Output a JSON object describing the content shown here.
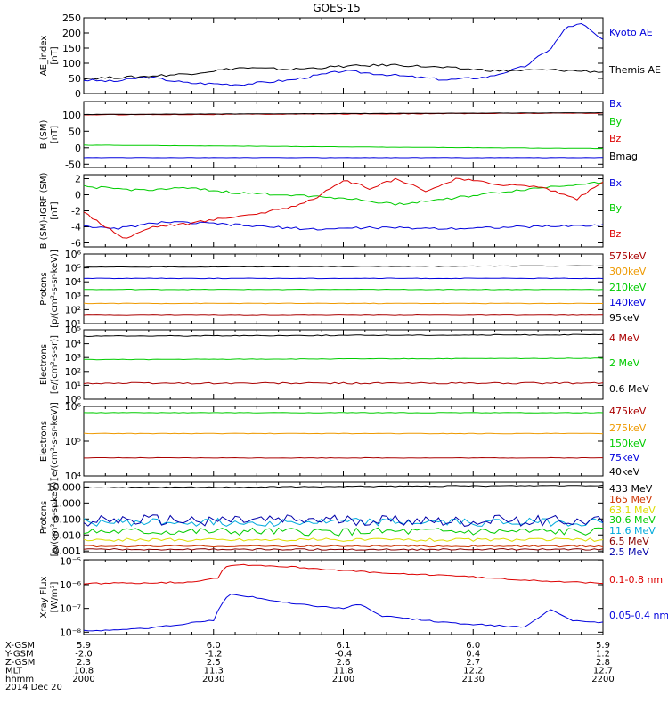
{
  "title": "GOES-15",
  "time_axis": {
    "start": "2000",
    "end": "2200",
    "ticks": [
      "2000",
      "2030",
      "2100",
      "2130",
      "2200"
    ]
  },
  "footer": {
    "rows": [
      {
        "label": "X-GSM",
        "values": [
          "5.9",
          "6.0",
          "6.1",
          "6.0",
          "5.9"
        ]
      },
      {
        "label": "Y-GSM",
        "values": [
          "-2.0",
          "-1.2",
          "-0.4",
          "0.4",
          "1.2"
        ]
      },
      {
        "label": "Z-GSM",
        "values": [
          "2.3",
          "2.5",
          "2.6",
          "2.7",
          "2.8"
        ]
      },
      {
        "label": "MLT",
        "values": [
          "10.8",
          "11.3",
          "11.8",
          "12.2",
          "12.7"
        ]
      },
      {
        "label": "hhmm",
        "values": [
          "2000",
          "2030",
          "2100",
          "2130",
          "2200"
        ]
      }
    ],
    "date": "2014 Dec 20"
  },
  "chart_data": [
    {
      "type": "line",
      "ylabel": [
        "AE_index",
        "[nT]"
      ],
      "yscale": "linear",
      "ylim": [
        0,
        250
      ],
      "yticks": [
        {
          "v": 0,
          "t": "0"
        },
        {
          "v": 50,
          "t": "50"
        },
        {
          "v": 100,
          "t": "100"
        },
        {
          "v": 150,
          "t": "150"
        },
        {
          "v": 200,
          "t": "200"
        },
        {
          "v": 250,
          "t": "250"
        }
      ],
      "series": [
        {
          "name": "Kyoto AE",
          "color": "#0000dd",
          "pattern": "kyoto"
        },
        {
          "name": "Themis AE",
          "color": "#000000",
          "pattern": "themis"
        }
      ]
    },
    {
      "type": "line",
      "ylabel": [
        "B (SM)",
        "[nT]"
      ],
      "yscale": "linear",
      "ylim": [
        -60,
        140
      ],
      "yticks": [
        {
          "v": -50,
          "t": "-50"
        },
        {
          "v": 0,
          "t": "0"
        },
        {
          "v": 50,
          "t": "50"
        },
        {
          "v": 100,
          "t": "100"
        }
      ],
      "series": [
        {
          "name": "Bx",
          "color": "#0000dd",
          "base": -30,
          "amp": 0.5
        },
        {
          "name": "By",
          "color": "#00cc00",
          "base": 8,
          "end": -2,
          "amp": 0.5
        },
        {
          "name": "Bz",
          "color": "#dd0000",
          "base": 100,
          "end": 105,
          "amp": 1
        },
        {
          "name": "Bmag",
          "color": "#000000",
          "base": 101,
          "end": 106,
          "amp": 0.5
        }
      ]
    },
    {
      "type": "line",
      "ylabel": [
        "B (SM)-IGRF (SM)",
        "[nT]"
      ],
      "yscale": "linear",
      "ylim": [
        -6.5,
        2.5
      ],
      "yticks": [
        {
          "v": -6,
          "t": "-6"
        },
        {
          "v": -4,
          "t": "-4"
        },
        {
          "v": -2,
          "t": "-2"
        },
        {
          "v": 0,
          "t": "0"
        },
        {
          "v": 2,
          "t": "2"
        }
      ],
      "series": [
        {
          "name": "Bx",
          "color": "#0000dd",
          "pattern": "dbx"
        },
        {
          "name": "By",
          "color": "#00cc00",
          "pattern": "dby"
        },
        {
          "name": "Bz",
          "color": "#dd0000",
          "pattern": "dbz"
        }
      ]
    },
    {
      "type": "line",
      "ylabel": [
        "Protons",
        "[p/(cm²-s-sr-keV)]"
      ],
      "yscale": "log",
      "ylim": [
        1,
        6
      ],
      "yticks": [
        {
          "v": 1,
          "t": "10¹"
        },
        {
          "v": 2,
          "t": "10²"
        },
        {
          "v": 3,
          "t": "10³"
        },
        {
          "v": 4,
          "t": "10⁴"
        },
        {
          "v": 5,
          "t": "10⁵"
        },
        {
          "v": 6,
          "t": "10⁶"
        }
      ],
      "series": [
        {
          "name": "575keV",
          "color": "#aa0000",
          "base": 1.65,
          "amp": 0.02
        },
        {
          "name": "300keV",
          "color": "#ee9900",
          "base": 2.45,
          "amp": 0.02
        },
        {
          "name": "210keV",
          "color": "#00cc00",
          "base": 3.45,
          "amp": 0.02
        },
        {
          "name": "140keV",
          "color": "#0000dd",
          "base": 4.25,
          "amp": 0.02
        },
        {
          "name": "95keV",
          "color": "#000000",
          "base": 5.05,
          "end": 5.15,
          "amp": 0.02
        }
      ]
    },
    {
      "type": "line",
      "ylabel": [
        "Electrons",
        "[e/(cm²-s-sr)]"
      ],
      "yscale": "log",
      "ylim": [
        0,
        5
      ],
      "yticks": [
        {
          "v": 0,
          "t": "10⁰"
        },
        {
          "v": 1,
          "t": "10¹"
        },
        {
          "v": 2,
          "t": "10²"
        },
        {
          "v": 3,
          "t": "10³"
        },
        {
          "v": 4,
          "t": "10⁴"
        },
        {
          "v": 5,
          "t": "10⁵"
        }
      ],
      "series": [
        {
          "name": "4 MeV",
          "color": "#aa0000",
          "base": 1.15,
          "amp": 0.06
        },
        {
          "name": "2 MeV",
          "color": "#00cc00",
          "base": 2.85,
          "end": 2.95,
          "amp": 0.02
        },
        {
          "name": "0.6 MeV",
          "color": "#000000",
          "base": 4.55,
          "end": 4.65,
          "amp": 0.03
        }
      ]
    },
    {
      "type": "line",
      "ylabel": [
        "Electrons",
        "[e/(cm²-s-sr-keV)]"
      ],
      "yscale": "log",
      "ylim": [
        4,
        6
      ],
      "yticks": [
        {
          "v": 4,
          "t": "10⁴"
        },
        {
          "v": 5,
          "t": "10⁵"
        },
        {
          "v": 6,
          "t": "10⁶"
        }
      ],
      "series": [
        {
          "name": "475keV",
          "color": "#aa0000",
          "base": 4.52,
          "amp": 0.008
        },
        {
          "name": "275keV",
          "color": "#ee9900",
          "base": 5.22,
          "amp": 0.008
        },
        {
          "name": "150keV",
          "color": "#00cc00",
          "base": 5.82,
          "amp": 0.008
        },
        {
          "name": "75keV",
          "color": "#0000dd"
        },
        {
          "name": "40keV",
          "color": "#000000"
        }
      ]
    },
    {
      "type": "line",
      "ylabel": [
        "Protons",
        "[p/(cm²-s-sr-keV)]"
      ],
      "yscale": "log",
      "ylim": [
        -3.1,
        1.3
      ],
      "yticks": [
        {
          "v": -3,
          "t": "0.001"
        },
        {
          "v": -2,
          "t": "0.010"
        },
        {
          "v": -1,
          "t": "0.100"
        },
        {
          "v": 0,
          "t": "1.000"
        },
        {
          "v": 1,
          "t": "10.000"
        }
      ],
      "series": [
        {
          "name": "433 MeV",
          "color": "#000000",
          "base": 0.95,
          "end": 1.1,
          "amp": 0.03
        },
        {
          "name": "165 MeV",
          "color": "#cc3300",
          "base": -2.7,
          "amp": 0.05
        },
        {
          "name": "63.1 MeV",
          "color": "#dddd00",
          "base": -2.3,
          "amp": 0.1
        },
        {
          "name": "30.6 MeV",
          "color": "#00cc00",
          "base": -1.8,
          "amp": 0.25
        },
        {
          "name": "11.6 MeV",
          "color": "#00aadd",
          "base": -1.2,
          "amp": 0.25
        },
        {
          "name": "6.5 MeV",
          "color": "#880000",
          "base": -2.9,
          "amp": 0.05
        },
        {
          "name": "2.5 MeV",
          "color": "#0000aa",
          "base": -1.1,
          "amp": 0.35
        }
      ]
    },
    {
      "type": "line",
      "ylabel": [
        "Xray Flux",
        "[W/m²]"
      ],
      "yscale": "log",
      "ylim": [
        -8.1,
        -4.95
      ],
      "yticks": [
        {
          "v": -8,
          "t": "10⁻⁸"
        },
        {
          "v": -7,
          "t": "10⁻⁷"
        },
        {
          "v": -6,
          "t": "10⁻⁶"
        },
        {
          "v": -5,
          "t": "10⁻⁵"
        }
      ],
      "series": [
        {
          "name": "0.1-0.8 nm",
          "color": "#dd0000",
          "pattern": "xl"
        },
        {
          "name": "0.05-0.4 nm",
          "color": "#0000dd",
          "pattern": "xs"
        }
      ]
    }
  ]
}
